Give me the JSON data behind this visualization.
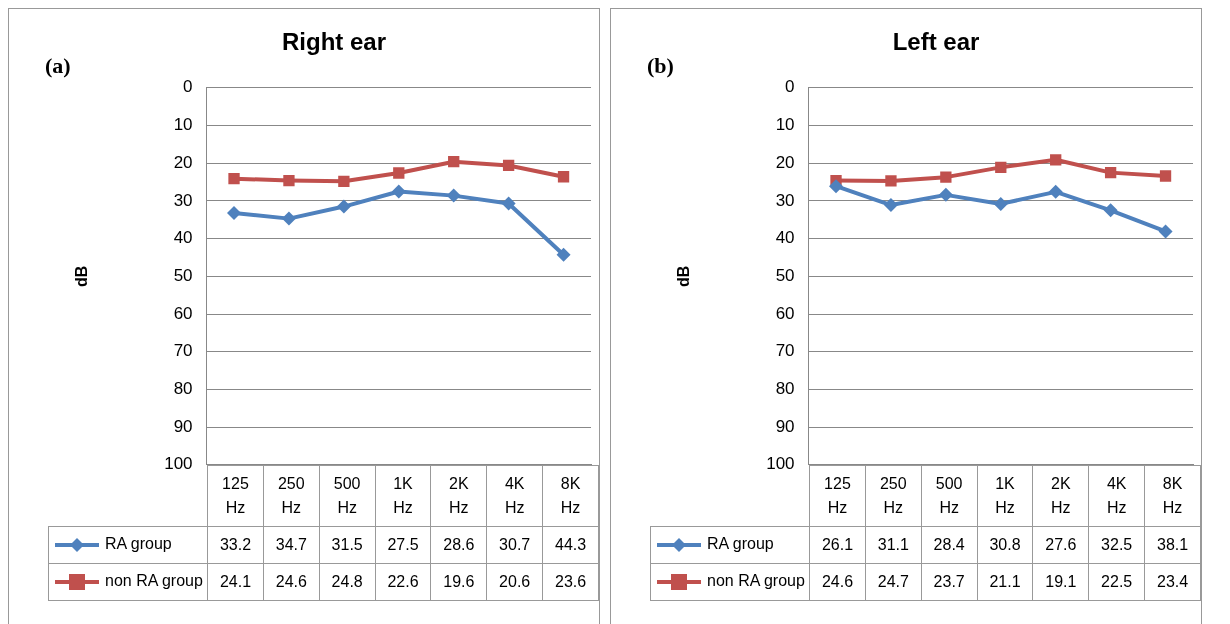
{
  "chart_data": [
    {
      "type": "line",
      "title": "Right ear",
      "ylabel": "dB",
      "annotations": [
        "(a)"
      ],
      "categories": [
        "125 Hz",
        "250 Hz",
        "500 Hz",
        "1K Hz",
        "2K Hz",
        "4K Hz",
        "8K Hz"
      ],
      "series": [
        {
          "name": "RA group",
          "color": "#4f81bd",
          "marker": "diamond",
          "values": [
            33.2,
            34.7,
            31.5,
            27.5,
            28.6,
            30.7,
            44.3
          ]
        },
        {
          "name": "non RA group",
          "color": "#c0504d",
          "marker": "square",
          "values": [
            24.1,
            24.6,
            24.8,
            22.6,
            19.6,
            20.6,
            23.6
          ]
        }
      ],
      "ylim": [
        100,
        0
      ],
      "yticks": [
        0,
        10,
        20,
        30,
        40,
        50,
        60,
        70,
        80,
        90,
        100
      ],
      "grid": "y",
      "legend": "bottom",
      "data_labels": true
    },
    {
      "type": "line",
      "title": "Left ear",
      "ylabel": "dB",
      "annotations": [
        "(b)"
      ],
      "categories": [
        "125 Hz",
        "250 Hz",
        "500 Hz",
        "1K Hz",
        "2K Hz",
        "4K Hz",
        "8K Hz"
      ],
      "series": [
        {
          "name": "RA group",
          "color": "#4f81bd",
          "marker": "diamond",
          "values": [
            26.1,
            31.1,
            28.4,
            30.8,
            27.6,
            32.5,
            38.1
          ]
        },
        {
          "name": "non RA group",
          "color": "#c0504d",
          "marker": "square",
          "values": [
            24.6,
            24.7,
            23.7,
            21.1,
            19.1,
            22.5,
            23.4
          ]
        }
      ],
      "ylim": [
        100,
        0
      ],
      "yticks": [
        0,
        10,
        20,
        30,
        40,
        50,
        60,
        70,
        80,
        90,
        100
      ],
      "grid": "y",
      "legend": "bottom",
      "data_labels": true
    }
  ]
}
